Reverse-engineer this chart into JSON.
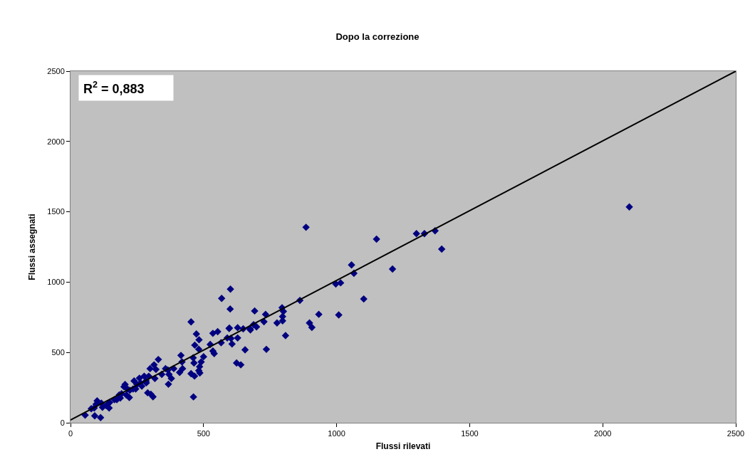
{
  "chart_data": {
    "type": "scatter",
    "title": "Dopo la correzione",
    "xlabel": "Flussi rilevati",
    "ylabel": "Flussi assegnati",
    "annotations": [
      "R$^{2}$ = 0,883"
    ],
    "xlim": [
      0,
      2500
    ],
    "ylim": [
      0,
      2500
    ],
    "xticks": [
      0,
      500,
      1000,
      1500,
      2000,
      2500
    ],
    "yticks": [
      0,
      500,
      1000,
      1500,
      2000,
      2500
    ],
    "grid": false,
    "legend": false,
    "series": [
      {
        "color": "#000080",
        "marker": "diamond",
        "x": [
          2100,
          1395,
          1370,
          1330,
          1300,
          1150,
          1210,
          1056,
          1065,
          997,
          1015,
          1102,
          1008,
          933,
          898,
          907,
          885,
          862,
          795,
          800,
          797,
          797,
          776,
          808,
          733,
          727,
          692,
          674,
          688,
          699,
          676,
          628,
          649,
          628,
          601,
          600,
          597,
          603,
          607,
          656,
          736,
          624,
          640,
          568,
          453,
          473,
          596,
          535,
          553,
          483,
          467,
          525,
          482,
          535,
          540,
          566,
          589,
          415,
          419,
          461,
          500,
          491,
          464,
          485,
          482,
          486,
          453,
          466,
          462,
          410,
          421,
          388,
          366,
          357,
          343,
          370,
          379,
          368,
          330,
          314,
          299,
          321,
          317,
          294,
          277,
          284,
          290,
          302,
          310,
          263,
          268,
          250,
          239,
          235,
          223,
          221,
          210,
          205,
          201,
          192,
          187,
          174,
          165,
          147,
          145,
          134,
          120,
          116,
          100,
          96,
          89,
          78,
          91,
          113,
          55,
          214,
          245,
          285,
          183,
          259
        ],
        "values": [
          1535,
          1235,
          1365,
          1345,
          1345,
          1306,
          1093,
          1122,
          1063,
          987,
          995,
          880,
          767,
          771,
          710,
          678,
          1390,
          870,
          818,
          792,
          755,
          725,
          710,
          620,
          771,
          719,
          795,
          669,
          698,
          682,
          660,
          676,
          668,
          603,
          950,
          809,
          673,
          600,
          560,
          519,
          522,
          425,
          412,
          884,
          717,
          631,
          670,
          636,
          648,
          590,
          552,
          557,
          523,
          510,
          492,
          569,
          603,
          479,
          433,
          462,
          470,
          433,
          425,
          399,
          371,
          354,
          349,
          332,
          184,
          358,
          385,
          385,
          375,
          385,
          344,
          344,
          315,
          274,
          450,
          412,
          385,
          379,
          315,
          331,
          331,
          297,
          213,
          203,
          185,
          284,
          260,
          272,
          297,
          240,
          231,
          180,
          197,
          272,
          256,
          206,
          176,
          164,
          164,
          144,
          105,
          122,
          110,
          139,
          156,
          131,
          105,
          100,
          49,
          37,
          54,
          240,
          240,
          284,
          197,
          317
        ]
      },
      {
        "type": "line",
        "marker": "none",
        "color": "#000000",
        "x": [
          0,
          2500
        ],
        "values": [
          20,
          2500
        ]
      }
    ]
  }
}
